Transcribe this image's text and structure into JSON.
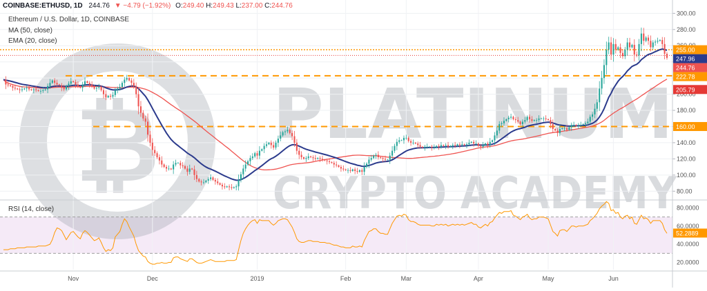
{
  "header": {
    "symbol": "COINBASE:ETHUSD, 1D",
    "last": "244.76",
    "change": "▼ −4.79 (−1.92%)",
    "ohlc": {
      "o_label": "O:",
      "o": "249.40",
      "h_label": "H:",
      "h": "249.43",
      "l_label": "L:",
      "l": "237.00",
      "c_label": "C:",
      "c": "244.76"
    }
  },
  "legend": {
    "name": "Ethereum / U.S. Dollar, 1D, COINBASE",
    "ma": "MA (50, close)",
    "ema": "EMA (20, close)",
    "rsi": "RSI (14, close)"
  },
  "watermark": {
    "line1": "PLATINUM",
    "line2": "CRYPTO ACADEMY"
  },
  "colors": {
    "up": "#26a69a",
    "down": "#ef5350",
    "ma": "#ef5350",
    "ema": "#2b3a8c",
    "level": "#ff9800",
    "rsi": "#ff9800",
    "rsiBand": "#f3e5f5"
  },
  "chart_data": {
    "type": "candlestick",
    "x_labels": [
      "Nov",
      "Dec",
      "2019",
      "Feb",
      "Mar",
      "Apr",
      "May",
      "Jun"
    ],
    "price_ticks": [
      "300.00",
      "280.00",
      "260.00",
      "240.00",
      "220.00",
      "200.00",
      "180.00",
      "160.00",
      "140.00",
      "120.00",
      "100.00",
      "80.00"
    ],
    "price_ylim": [
      70,
      302
    ],
    "rsi_ticks": [
      "80.0000",
      "60.0000",
      "40.0000",
      "20.0000"
    ],
    "rsi_ylim": [
      12,
      88
    ],
    "horizontal_levels": [
      255.0,
      222.78,
      160.0
    ],
    "price_labels": [
      {
        "value": 255.0,
        "text": "255.00",
        "bg": "#ff9800",
        "fg": "#ffffff"
      },
      {
        "value": 247.96,
        "text": "247.96",
        "bg": "#2b3a8c",
        "fg": "#ffffff"
      },
      {
        "value": 244.76,
        "text": "244.76",
        "bg": "#ef5350",
        "fg": "#ffffff"
      },
      {
        "value": 222.78,
        "text": "222.78",
        "bg": "#ff9800",
        "fg": "#ffffff"
      },
      {
        "value": 205.79,
        "text": "205.79",
        "bg": "#e53935",
        "fg": "#ffffff"
      },
      {
        "value": 160.0,
        "text": "160.00",
        "bg": "#ff9800",
        "fg": "#ffffff"
      }
    ],
    "rsi_label": {
      "value": 52.2889,
      "text": "52.2889"
    },
    "close": [
      218,
      212,
      211,
      210,
      208,
      207,
      206,
      205,
      206,
      207,
      208,
      206,
      205,
      206,
      205,
      204,
      204,
      205,
      206,
      210,
      214,
      217,
      214,
      212,
      211,
      208,
      206,
      210,
      213,
      216,
      215,
      212,
      210,
      208,
      212,
      216,
      214,
      212,
      210,
      207,
      208,
      209,
      205,
      200,
      196,
      198,
      197,
      199,
      205,
      207,
      209,
      214,
      218,
      220,
      217,
      214,
      210,
      200,
      185,
      177,
      170,
      166,
      150,
      140,
      131,
      127,
      122,
      118,
      113,
      110,
      108,
      108,
      107,
      113,
      115,
      115,
      112,
      111,
      108,
      104,
      108,
      107,
      100,
      95,
      92,
      91,
      91,
      93,
      95,
      97,
      94,
      92,
      90,
      88,
      86,
      85,
      86,
      85,
      84,
      85,
      86,
      94,
      101,
      108,
      113,
      117,
      121,
      123,
      127,
      124,
      130,
      132,
      136,
      138,
      140,
      137,
      134,
      140,
      145,
      149,
      153,
      154,
      156,
      152,
      148,
      140,
      130,
      125,
      122,
      120,
      121,
      123,
      122,
      121,
      120,
      121,
      120,
      119,
      118,
      117,
      116,
      115,
      113,
      112,
      110,
      108,
      107,
      106,
      106,
      105,
      107,
      105,
      104,
      106,
      104,
      110,
      114,
      119,
      121,
      124,
      125,
      122,
      121,
      120,
      119,
      119,
      124,
      130,
      136,
      141,
      143,
      143,
      146,
      146,
      142,
      140,
      140,
      139,
      137,
      135,
      134,
      135,
      135,
      135,
      134,
      134,
      136,
      135,
      137,
      136,
      137,
      135,
      136,
      137,
      136,
      138,
      137,
      138,
      137,
      138,
      140,
      141,
      139,
      139,
      136,
      135,
      137,
      139,
      137,
      141,
      143,
      149,
      155,
      163,
      164,
      167,
      169,
      171,
      172,
      169,
      168,
      166,
      163,
      166,
      168,
      172,
      169,
      167,
      168,
      168,
      170,
      170,
      170,
      169,
      168,
      163,
      157,
      155,
      152,
      157,
      158,
      158,
      156,
      159,
      162,
      162,
      161,
      162,
      162,
      163,
      164,
      166,
      172,
      175,
      182,
      190,
      207,
      220,
      236,
      255,
      264,
      249,
      262,
      255,
      258,
      251,
      247,
      255,
      264,
      258,
      261,
      249,
      248,
      262,
      275,
      266,
      270,
      266,
      258,
      264,
      265,
      266,
      267,
      262,
      250,
      245
    ],
    "ma50": [],
    "ema20": [],
    "rsi": [
      34,
      34,
      34,
      35,
      35,
      35,
      36,
      36,
      36,
      36,
      37,
      37,
      37,
      37,
      37,
      38,
      38,
      38,
      38,
      39,
      40,
      45,
      53,
      58,
      57,
      55,
      50,
      45,
      49,
      53,
      54,
      51,
      48,
      46,
      52,
      55,
      53,
      50,
      47,
      44,
      45,
      47,
      42,
      36,
      32,
      34,
      33,
      36,
      48,
      51,
      54,
      62,
      68,
      65,
      59,
      54,
      49,
      40,
      33,
      30,
      27,
      26,
      21,
      19,
      18,
      18,
      19,
      19,
      20,
      19,
      19,
      20,
      20,
      25,
      26,
      26,
      24,
      23,
      22,
      21,
      24,
      24,
      22,
      20,
      19,
      19,
      20,
      21,
      22,
      23,
      22,
      21,
      21,
      21,
      21,
      21,
      22,
      22,
      22,
      22,
      23,
      34,
      44,
      52,
      57,
      61,
      64,
      66,
      67,
      63,
      67,
      66,
      66,
      66,
      66,
      63,
      61,
      63,
      66,
      67,
      68,
      68,
      67,
      63,
      59,
      53,
      46,
      43,
      42,
      42,
      43,
      44,
      44,
      43,
      43,
      43,
      42,
      42,
      42,
      41,
      41,
      40,
      39,
      39,
      38,
      37,
      37,
      36,
      36,
      36,
      38,
      37,
      37,
      38,
      37,
      44,
      49,
      54,
      55,
      57,
      57,
      54,
      52,
      52,
      51,
      51,
      57,
      63,
      67,
      71,
      72,
      71,
      73,
      72,
      67,
      65,
      65,
      64,
      62,
      61,
      61,
      61,
      61,
      61,
      60,
      60,
      62,
      61,
      62,
      61,
      62,
      60,
      61,
      62,
      61,
      62,
      61,
      62,
      61,
      62,
      63,
      64,
      62,
      62,
      59,
      58,
      60,
      62,
      60,
      64,
      65,
      69,
      72,
      75,
      74,
      76,
      76,
      76,
      77,
      72,
      71,
      69,
      67,
      70,
      71,
      73,
      69,
      67,
      68,
      68,
      70,
      70,
      70,
      69,
      68,
      61,
      54,
      52,
      49,
      55,
      56,
      56,
      54,
      57,
      60,
      60,
      59,
      60,
      60,
      60,
      61,
      62,
      66,
      68,
      71,
      74,
      79,
      82,
      84,
      87,
      85,
      77,
      78,
      74,
      75,
      70,
      68,
      71,
      72,
      68,
      70,
      63,
      62,
      67,
      72,
      68,
      69,
      67,
      63,
      66,
      66,
      66,
      66,
      63,
      56,
      52
    ]
  }
}
